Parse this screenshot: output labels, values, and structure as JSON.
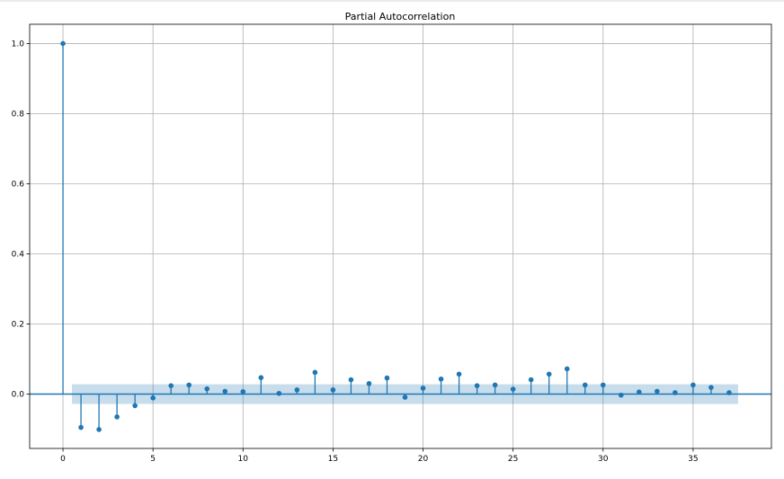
{
  "chart_data": {
    "type": "stem",
    "title": "Partial Autocorrelation",
    "xlabel": "",
    "ylabel": "",
    "xlim": [
      -1.85,
      39.35
    ],
    "ylim": [
      -0.155,
      1.055
    ],
    "xticks": [
      0,
      5,
      10,
      15,
      20,
      25,
      30,
      35
    ],
    "yticks": [
      -0.0,
      0.2,
      0.4,
      0.6,
      0.8,
      1.0
    ],
    "ytick_labels": [
      "0.0",
      "0.2",
      "0.4",
      "0.6",
      "0.8",
      "1.0"
    ],
    "grid": true,
    "lags": [
      0,
      1,
      2,
      3,
      4,
      5,
      6,
      7,
      8,
      9,
      10,
      11,
      12,
      13,
      14,
      15,
      16,
      17,
      18,
      19,
      20,
      21,
      22,
      23,
      24,
      25,
      26,
      27,
      28,
      29,
      30,
      31,
      32,
      33,
      34,
      35,
      36,
      37
    ],
    "values": [
      1.0,
      -0.095,
      -0.101,
      -0.065,
      -0.033,
      -0.011,
      0.024,
      0.026,
      0.015,
      0.008,
      0.007,
      0.047,
      0.002,
      0.012,
      0.062,
      0.012,
      0.041,
      0.03,
      0.046,
      -0.009,
      0.017,
      0.043,
      0.057,
      0.024,
      0.026,
      0.014,
      0.041,
      0.057,
      0.072,
      0.026,
      0.026,
      -0.003,
      0.006,
      0.008,
      0.004,
      0.026,
      0.019,
      0.004
    ],
    "confidence_band": {
      "lower": -0.028,
      "upper": 0.028,
      "x_start": 0.5,
      "x_end": 37.5
    },
    "colors": {
      "stem": "#1f77b4",
      "band": "#1f77b4",
      "grid": "#b0b0b0"
    }
  }
}
